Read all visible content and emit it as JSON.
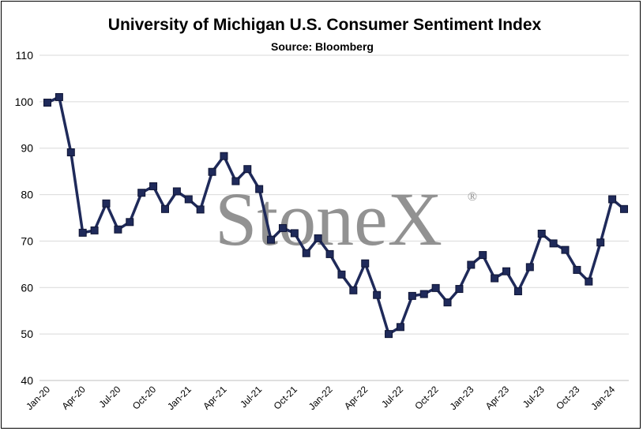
{
  "chart_data": {
    "type": "line",
    "title": "University of Michigan U.S. Consumer Sentiment Index",
    "subtitle": "Source: Bloomberg",
    "watermark": "StoneX",
    "watermark_mark": "®",
    "ylim": [
      40,
      110
    ],
    "yticks": [
      40,
      50,
      60,
      70,
      80,
      90,
      100,
      110
    ],
    "xtick_labels": [
      "Jan-20",
      "Apr-20",
      "Jul-20",
      "Oct-20",
      "Jan-21",
      "Apr-21",
      "Jul-21",
      "Oct-21",
      "Jan-22",
      "Apr-22",
      "Jul-22",
      "Oct-22",
      "Jan-23",
      "Apr-23",
      "Jul-23",
      "Oct-23",
      "Jan-24"
    ],
    "grid": true,
    "line_color": "#1f2a5a",
    "marker": "square",
    "series": [
      {
        "x": [
          "Jan-20",
          "Feb-20",
          "Mar-20",
          "Apr-20",
          "May-20",
          "Jun-20",
          "Jul-20",
          "Aug-20",
          "Sep-20",
          "Oct-20",
          "Nov-20",
          "Dec-20",
          "Jan-21",
          "Feb-21",
          "Mar-21",
          "Apr-21",
          "May-21",
          "Jun-21",
          "Jul-21",
          "Aug-21",
          "Sep-21",
          "Oct-21",
          "Nov-21",
          "Dec-21",
          "Jan-22",
          "Feb-22",
          "Mar-22",
          "Apr-22",
          "May-22",
          "Jun-22",
          "Jul-22",
          "Aug-22",
          "Sep-22",
          "Oct-22",
          "Nov-22",
          "Dec-22",
          "Jan-23",
          "Feb-23",
          "Mar-23",
          "Apr-23",
          "May-23",
          "Jun-23",
          "Jul-23",
          "Aug-23",
          "Sep-23",
          "Oct-23",
          "Nov-23",
          "Dec-23",
          "Jan-24",
          "Feb-24"
        ],
        "values": [
          99.8,
          101.0,
          89.1,
          71.8,
          72.3,
          78.1,
          72.5,
          74.1,
          80.4,
          81.8,
          76.9,
          80.7,
          79.0,
          76.8,
          84.9,
          88.3,
          82.9,
          85.5,
          81.2,
          70.3,
          72.8,
          71.7,
          67.4,
          70.6,
          67.2,
          62.8,
          59.4,
          65.2,
          58.4,
          50.0,
          51.5,
          58.2,
          58.6,
          59.9,
          56.8,
          59.7,
          64.9,
          67.0,
          62.0,
          63.5,
          59.2,
          64.4,
          71.6,
          69.5,
          68.1,
          63.8,
          61.3,
          69.7,
          79.0,
          76.9
        ]
      }
    ]
  }
}
